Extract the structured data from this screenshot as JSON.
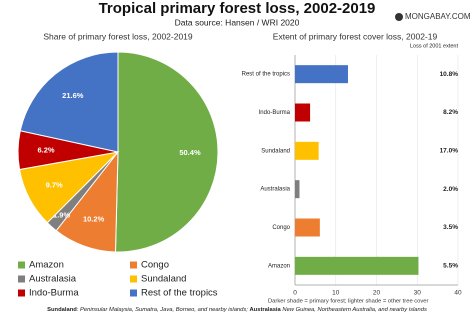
{
  "header": {
    "title": "Tropical primary forest loss, 2002-2019",
    "subtitle": "Data source: Hansen / WRI 2020",
    "logo": "MONGABAY.COM"
  },
  "chart_data": [
    {
      "type": "pie",
      "title": "Share of primary forest loss, 2002-2019",
      "categories": [
        "Amazon",
        "Congo",
        "Australasia",
        "Sundaland",
        "Indo-Burma",
        "Rest of the tropics"
      ],
      "values": [
        50.4,
        10.2,
        1.9,
        9.7,
        6.2,
        21.6
      ],
      "value_labels": [
        "50.4%",
        "10.2%",
        "1.9%",
        "9.7%",
        "6.2%",
        "21.6%"
      ],
      "colors": [
        "#70ad47",
        "#ed7d31",
        "#7f7f7f",
        "#ffc000",
        "#c00000",
        "#4472c4"
      ],
      "legend": "bottom"
    },
    {
      "type": "hbar",
      "title": "Extent of primary forest cover loss, 2002-19",
      "categories": [
        "Rest of the tropics",
        "Indo-Burma",
        "Sundaland",
        "Australasia",
        "Congo",
        "Amazon"
      ],
      "values": [
        13,
        3.7,
        5.8,
        1.1,
        6.1,
        30.3
      ],
      "colors": [
        "#4472c4",
        "#c00000",
        "#ffc000",
        "#7f7f7f",
        "#ed7d31",
        "#70ad47"
      ],
      "share_header": "Loss of 2001 extent",
      "share_labels": [
        "10.8%",
        "8.2%",
        "17.0%",
        "2.0%",
        "3.5%",
        "5.5%"
      ],
      "xlim": [
        0,
        40
      ],
      "xticks": [
        0,
        10,
        20,
        30,
        40
      ],
      "note": "Darker shade = primary forest; lighter shade = other tree cover"
    }
  ],
  "footer": [
    {
      "term": "Sundaland",
      "text": ": Peninsular Malaysia, Sumatra, Java, Borneo, and nearby islands; "
    },
    {
      "term": "Australasia",
      "text": " New Guinea, Northeastern Australia, and nearby islands"
    }
  ]
}
